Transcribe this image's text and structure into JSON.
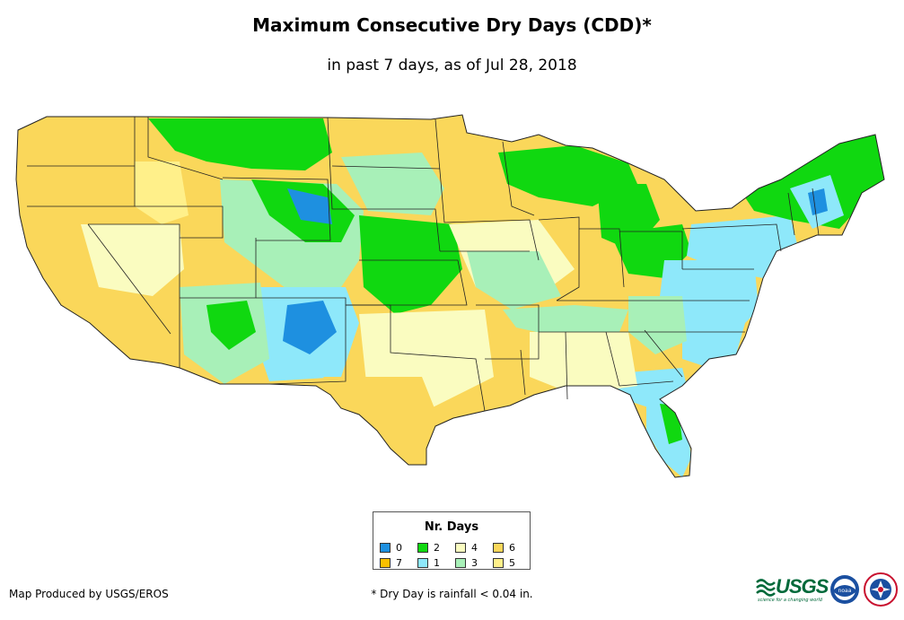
{
  "title": "Maximum Consecutive Dry Days (CDD)*",
  "subtitle": "in past 7 days, as of Jul 28, 2018",
  "legend": {
    "title": "Nr. Days",
    "items": [
      {
        "label": "0",
        "color": "#1e90e0"
      },
      {
        "label": "2",
        "color": "#10d810"
      },
      {
        "label": "4",
        "color": "#fafcc0"
      },
      {
        "label": "6",
        "color": "#fad75a"
      },
      {
        "label": "7",
        "color": "#fac000"
      },
      {
        "label": "1",
        "color": "#8ee8fa"
      },
      {
        "label": "3",
        "color": "#a8f0b8"
      },
      {
        "label": "5",
        "color": "#fff08a"
      }
    ]
  },
  "credit": "Map Produced by USGS/EROS",
  "footnote": "* Dry Day is rainfall < 0.04 in.",
  "logos": {
    "usgs_text": "USGS",
    "usgs_tagline": "science for a changing world",
    "noaa_text": "noaa"
  }
}
